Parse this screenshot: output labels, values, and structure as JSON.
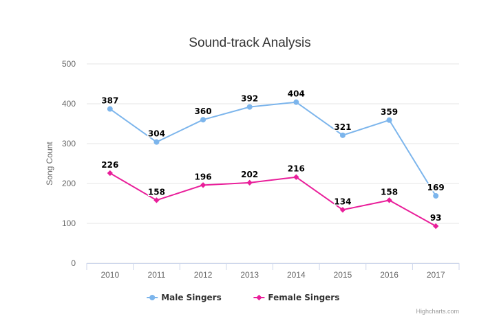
{
  "chart_data": {
    "type": "line",
    "title": "Sound-track Analysis",
    "ylabel": "Song Count",
    "xlabel": "",
    "categories": [
      "2010",
      "2011",
      "2012",
      "2013",
      "2014",
      "2015",
      "2016",
      "2017"
    ],
    "ylim": [
      0,
      500
    ],
    "yticks": [
      0,
      100,
      200,
      300,
      400,
      500
    ],
    "grid": true,
    "legend": "bottom-center",
    "series": [
      {
        "name": "Male Singers",
        "color": "#7cb5ec",
        "marker": "circle",
        "values": [
          387,
          304,
          360,
          392,
          404,
          321,
          359,
          169
        ]
      },
      {
        "name": "Female Singers",
        "color": "#e91e9a",
        "marker": "diamond",
        "values": [
          226,
          158,
          196,
          202,
          216,
          134,
          158,
          93
        ]
      }
    ]
  },
  "credits": "Highcharts.com"
}
